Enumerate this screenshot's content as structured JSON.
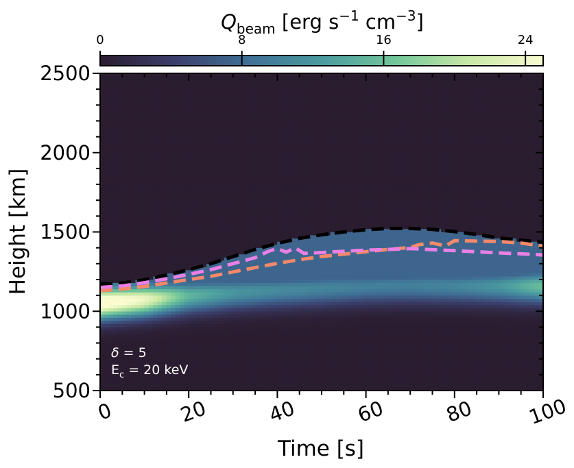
{
  "chart_data": {
    "type": "heatmap",
    "colorbar": {
      "label_symbol": "Q",
      "label_subscript": "beam",
      "label_units_prefix": "[erg s",
      "label_exp1": "−1",
      "label_units_mid": " cm",
      "label_exp2": "−3",
      "label_units_suffix": "]",
      "ticks": [
        0,
        8,
        16,
        24
      ],
      "tick_labels": [
        "0",
        "8",
        "16",
        "24"
      ],
      "vmin": 0,
      "vmax": 25
    },
    "xlabel": "Time [s]",
    "ylabel": "Height [km]",
    "xlim": [
      0,
      100
    ],
    "ylim": [
      500,
      2500
    ],
    "xticks": [
      0,
      20,
      40,
      60,
      80,
      100
    ],
    "xtick_labels": [
      "0",
      "20",
      "40",
      "60",
      "80",
      "100"
    ],
    "yticks": [
      500,
      1000,
      1500,
      2000,
      2500
    ],
    "ytick_labels": [
      "500",
      "1000",
      "1500",
      "2000",
      "2500"
    ],
    "annotation": {
      "delta_symbol": "δ",
      "delta_text": " = 5",
      "ec_symbol": "E",
      "ec_subscript": "c",
      "ec_text": " = 20 keV"
    },
    "colors": {
      "background": "#2b1d30",
      "heatmap_stops": [
        "#2b1d30",
        "#3b3e6b",
        "#3f6f96",
        "#4a9ba0",
        "#72c79a",
        "#c9e8a6",
        "#fafcd0"
      ],
      "black_curve": "#000000",
      "orange_curve": "#f4896b",
      "pink_curve": "#ea80e6"
    },
    "series": [
      {
        "style": "dashed-black",
        "x": [
          0,
          5,
          10,
          15,
          20,
          25,
          30,
          35,
          40,
          45,
          50,
          55,
          60,
          65,
          70,
          75,
          80,
          85,
          90,
          95,
          100
        ],
        "y": [
          1170,
          1178,
          1198,
          1228,
          1262,
          1300,
          1345,
          1390,
          1428,
          1460,
          1482,
          1500,
          1514,
          1522,
          1522,
          1516,
          1502,
          1484,
          1462,
          1448,
          1435
        ]
      },
      {
        "style": "dashed-pink",
        "x": [
          0,
          5,
          10,
          15,
          20,
          25,
          30,
          35,
          38,
          40,
          42,
          44,
          46,
          50,
          55,
          60,
          65,
          70,
          75,
          80,
          85,
          90,
          95,
          100
        ],
        "y": [
          1150,
          1160,
          1180,
          1205,
          1232,
          1262,
          1300,
          1338,
          1378,
          1395,
          1372,
          1400,
          1365,
          1370,
          1378,
          1385,
          1390,
          1395,
          1388,
          1382,
          1375,
          1368,
          1362,
          1355
        ]
      },
      {
        "style": "dashed-orange",
        "x": [
          0,
          5,
          10,
          15,
          20,
          25,
          30,
          35,
          40,
          45,
          50,
          55,
          60,
          65,
          70,
          72,
          75,
          78,
          80,
          85,
          90,
          95,
          100
        ],
        "y": [
          1130,
          1140,
          1156,
          1178,
          1200,
          1220,
          1248,
          1275,
          1302,
          1325,
          1345,
          1360,
          1375,
          1390,
          1402,
          1420,
          1430,
          1412,
          1445,
          1442,
          1440,
          1430,
          1410
        ]
      }
    ],
    "intensity_ridge": {
      "x": [
        0,
        10,
        20,
        30,
        40,
        50,
        60,
        70,
        80,
        90,
        100
      ],
      "y": [
        1060,
        1078,
        1102,
        1122,
        1136,
        1148,
        1160,
        1165,
        1163,
        1162,
        1162
      ],
      "peak": [
        28,
        24,
        15,
        12,
        11,
        10.5,
        10,
        10,
        10.5,
        12,
        16
      ]
    }
  }
}
